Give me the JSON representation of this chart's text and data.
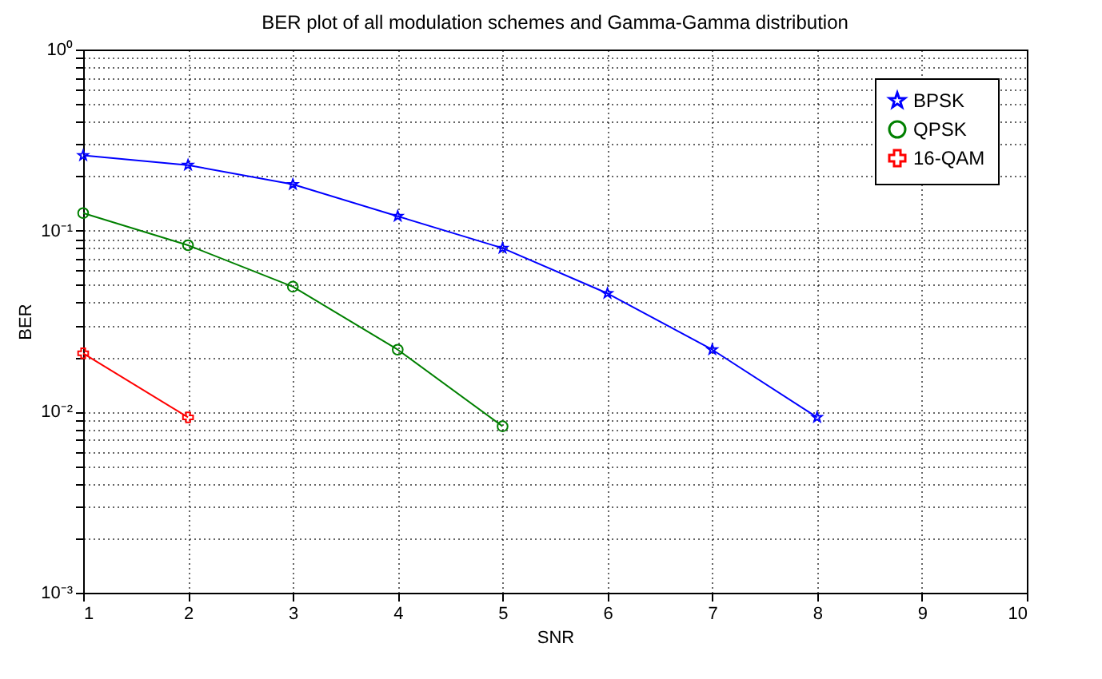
{
  "chart_data": {
    "type": "line",
    "title": "BER plot of all modulation schemes and Gamma-Gamma distribution",
    "xlabel": "SNR",
    "ylabel": "BER",
    "x": [
      1,
      2,
      3,
      4,
      5,
      6,
      7,
      8
    ],
    "series": [
      {
        "name": "BPSK",
        "color": "#0000ff",
        "marker": "star",
        "values": [
          0.26,
          0.23,
          0.18,
          0.12,
          0.08,
          0.045,
          0.022,
          0.0093
        ]
      },
      {
        "name": "QPSK",
        "color": "#008000",
        "marker": "circle",
        "x": [
          1,
          2,
          3,
          4,
          5
        ],
        "values": [
          0.125,
          0.083,
          0.049,
          0.022,
          0.0083
        ]
      },
      {
        "name": "16-QAM",
        "color": "#ff0000",
        "marker": "cross",
        "x": [
          1,
          2
        ],
        "values": [
          0.021,
          0.0093
        ]
      }
    ],
    "log": "y",
    "xlim": [
      1,
      10
    ],
    "xticks": [
      1,
      2,
      3,
      4,
      5,
      6,
      7,
      8,
      9,
      10
    ],
    "ylim": [
      0.001,
      1
    ],
    "yticks": [
      {
        "value": 0.001,
        "label": "10⁻³"
      },
      {
        "value": 0.002,
        "label": null
      },
      {
        "value": 0.003,
        "label": null
      },
      {
        "value": 0.004,
        "label": null
      },
      {
        "value": 0.005,
        "label": null
      },
      {
        "value": 0.006,
        "label": null
      },
      {
        "value": 0.007,
        "label": null
      },
      {
        "value": 0.008,
        "label": null
      },
      {
        "value": 0.009,
        "label": null
      },
      {
        "value": 0.01,
        "label": "10⁻²"
      },
      {
        "value": 0.02,
        "label": null
      },
      {
        "value": 0.03,
        "label": null
      },
      {
        "value": 0.04,
        "label": null
      },
      {
        "value": 0.05,
        "label": null
      },
      {
        "value": 0.06,
        "label": null
      },
      {
        "value": 0.07,
        "label": null
      },
      {
        "value": 0.08,
        "label": null
      },
      {
        "value": 0.09,
        "label": null
      },
      {
        "value": 0.1,
        "label": "10⁻¹"
      },
      {
        "value": 0.2,
        "label": null
      },
      {
        "value": 0.3,
        "label": null
      },
      {
        "value": 0.4,
        "label": null
      },
      {
        "value": 0.5,
        "label": null
      },
      {
        "value": 0.6,
        "label": null
      },
      {
        "value": 0.7,
        "label": null
      },
      {
        "value": 0.8,
        "label": null
      },
      {
        "value": 0.9,
        "label": null
      },
      {
        "value": 1,
        "label": "10⁰"
      }
    ],
    "grid": true,
    "legend": "top right",
    "line_style": "solid"
  }
}
